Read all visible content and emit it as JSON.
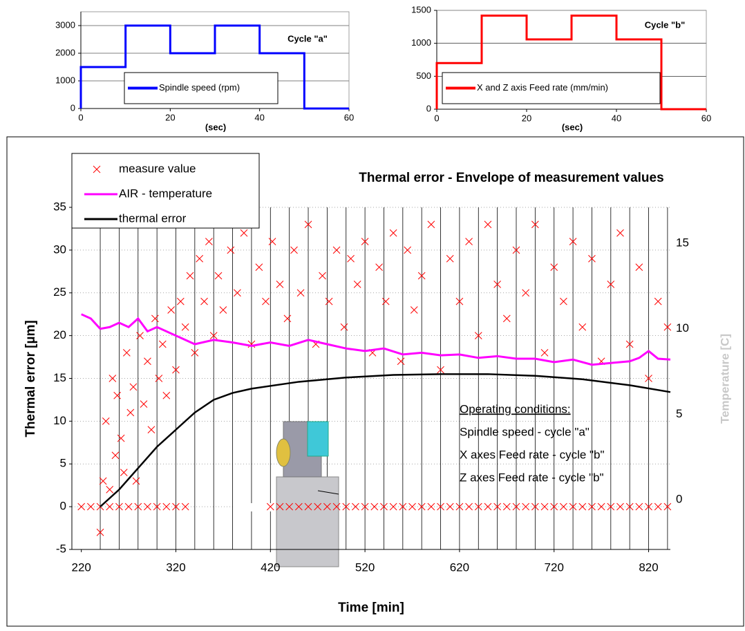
{
  "chart_data": [
    {
      "type": "step",
      "xlabel": "(sec)",
      "annotation": "Cycle \"a\"",
      "x": [
        0,
        10,
        20,
        30,
        40,
        50
      ],
      "xlim": [
        0,
        60
      ],
      "xticks": [
        0,
        20,
        40,
        60
      ],
      "ylim": [
        0,
        3500
      ],
      "yticks": [
        0,
        1000,
        2000,
        3000
      ],
      "grid": true,
      "series": [
        {
          "name": "Spindle speed (rpm)",
          "color": "#0000ff",
          "values": [
            1500,
            3000,
            2000,
            3000,
            2000,
            0
          ]
        }
      ]
    },
    {
      "type": "step",
      "xlabel": "(sec)",
      "annotation": "Cycle \"b\"",
      "x": [
        0,
        10,
        20,
        30,
        40,
        50
      ],
      "xlim": [
        0,
        60
      ],
      "xticks": [
        0,
        20,
        40,
        60
      ],
      "ylim": [
        0,
        1500
      ],
      "yticks": [
        0,
        500,
        1000,
        1500
      ],
      "grid": true,
      "series": [
        {
          "name": "X  and Z axis Feed rate (mm/min)",
          "color": "#ff0000",
          "values": [
            700,
            1420,
            1060,
            1420,
            1060,
            0
          ]
        }
      ]
    },
    {
      "type": "line",
      "title": "Thermal error - Envelope of measurement values",
      "xlabel": "Time [min]",
      "ylabel": "Thermal error [µm]",
      "y2label": "Temperature [C]",
      "annotations": [
        "Operating conditions:",
        "Spindle speed - cycle \"a\"",
        "X axes Feed rate - cycle \"b\"",
        "Z axes Feed rate - cycle \"b\""
      ],
      "xlim": [
        210,
        843
      ],
      "xticks": [
        220,
        320,
        420,
        520,
        620,
        720,
        820
      ],
      "xminorticks": [
        240,
        260,
        280,
        300,
        320,
        340,
        360,
        380,
        400,
        420,
        440,
        460,
        480,
        500,
        520,
        540,
        560,
        580,
        600,
        620,
        640,
        660,
        680,
        700,
        720,
        740,
        760,
        780,
        800,
        820,
        840
      ],
      "ylim": [
        -5,
        35
      ],
      "yticks": [
        -5,
        0,
        5,
        10,
        15,
        20,
        25,
        30,
        35
      ],
      "y2lim": [
        -2.5,
        17.5
      ],
      "y2ticks": [
        0,
        5,
        10,
        15
      ],
      "grid": true,
      "series": [
        {
          "name": "measure value",
          "type": "scatter",
          "color": "#ff0000",
          "x": [
            240,
            243,
            246,
            250,
            253,
            256,
            258,
            262,
            265,
            268,
            272,
            275,
            278,
            282,
            286,
            290,
            294,
            298,
            302,
            306,
            310,
            315,
            320,
            325,
            330,
            335,
            340,
            345,
            350,
            355,
            360,
            365,
            370,
            378,
            385,
            392,
            400,
            408,
            415,
            422,
            430,
            438,
            445,
            452,
            460,
            468,
            475,
            482,
            490,
            498,
            505,
            512,
            520,
            528,
            535,
            542,
            550,
            558,
            565,
            572,
            580,
            590,
            600,
            610,
            620,
            630,
            640,
            650,
            660,
            670,
            680,
            690,
            700,
            710,
            720,
            730,
            740,
            750,
            760,
            770,
            780,
            790,
            800,
            810,
            820,
            830,
            840,
            220,
            230,
            240,
            250,
            260,
            270,
            280,
            290,
            300,
            310,
            320,
            330,
            420,
            430,
            440,
            450,
            460,
            470,
            480,
            490,
            500,
            510,
            520,
            530,
            540,
            550,
            560,
            570,
            580,
            590,
            600,
            610,
            620,
            630,
            640,
            650,
            660,
            670,
            680,
            690,
            700,
            710,
            720,
            730,
            740,
            750,
            760,
            770,
            780,
            790,
            800,
            810,
            820,
            830,
            840
          ],
          "values": [
            -3,
            3,
            10,
            2,
            15,
            6,
            13,
            8,
            4,
            18,
            11,
            14,
            3,
            20,
            12,
            17,
            9,
            22,
            15,
            19,
            13,
            23,
            16,
            24,
            21,
            27,
            18,
            29,
            24,
            31,
            20,
            27,
            23,
            30,
            25,
            32,
            19,
            28,
            24,
            31,
            26,
            22,
            30,
            25,
            33,
            19,
            27,
            24,
            30,
            21,
            29,
            26,
            31,
            18,
            28,
            24,
            32,
            17,
            30,
            23,
            27,
            33,
            16,
            29,
            24,
            31,
            20,
            33,
            26,
            22,
            30,
            25,
            33,
            18,
            28,
            24,
            31,
            21,
            29,
            17,
            26,
            32,
            19,
            28,
            15,
            24,
            21,
            0,
            0,
            0,
            0,
            0,
            0,
            0,
            0,
            0,
            0,
            0,
            0,
            0,
            0,
            0,
            0,
            0,
            0,
            0,
            0,
            0,
            0,
            0,
            0,
            0,
            0,
            0,
            0,
            0,
            0,
            0,
            0,
            0,
            0,
            0,
            0,
            0,
            0,
            0,
            0,
            0,
            0,
            0,
            0,
            0,
            0,
            0,
            0,
            0,
            0,
            0,
            0,
            0,
            0,
            0
          ]
        },
        {
          "name": "AIR - temperature",
          "type": "line",
          "axis": "y2",
          "color": "#ff00ff",
          "x": [
            220,
            230,
            240,
            250,
            260,
            270,
            280,
            290,
            300,
            320,
            340,
            360,
            380,
            400,
            420,
            440,
            460,
            480,
            500,
            520,
            540,
            560,
            580,
            600,
            620,
            640,
            660,
            680,
            700,
            720,
            740,
            760,
            780,
            800,
            810,
            820,
            830,
            843
          ],
          "values": [
            11.25,
            11,
            10.4,
            10.5,
            10.75,
            10.5,
            11,
            10.25,
            10.5,
            10,
            9.5,
            9.75,
            9.6,
            9.4,
            9.6,
            9.4,
            9.75,
            9.5,
            9.25,
            9.1,
            9.25,
            8.9,
            9,
            8.85,
            8.9,
            8.7,
            8.8,
            8.65,
            8.65,
            8.45,
            8.6,
            8.3,
            8.4,
            8.5,
            8.7,
            9.1,
            8.65,
            8.6
          ]
        },
        {
          "name": "thermal error",
          "type": "line",
          "color": "#000000",
          "x": [
            240,
            260,
            280,
            300,
            320,
            340,
            360,
            380,
            400,
            450,
            500,
            550,
            600,
            650,
            700,
            750,
            800,
            843
          ],
          "values": [
            0,
            2,
            4.5,
            7,
            9,
            11,
            12.5,
            13.3,
            13.8,
            14.6,
            15.1,
            15.4,
            15.5,
            15.5,
            15.3,
            14.9,
            14.2,
            13.4
          ]
        }
      ]
    }
  ]
}
